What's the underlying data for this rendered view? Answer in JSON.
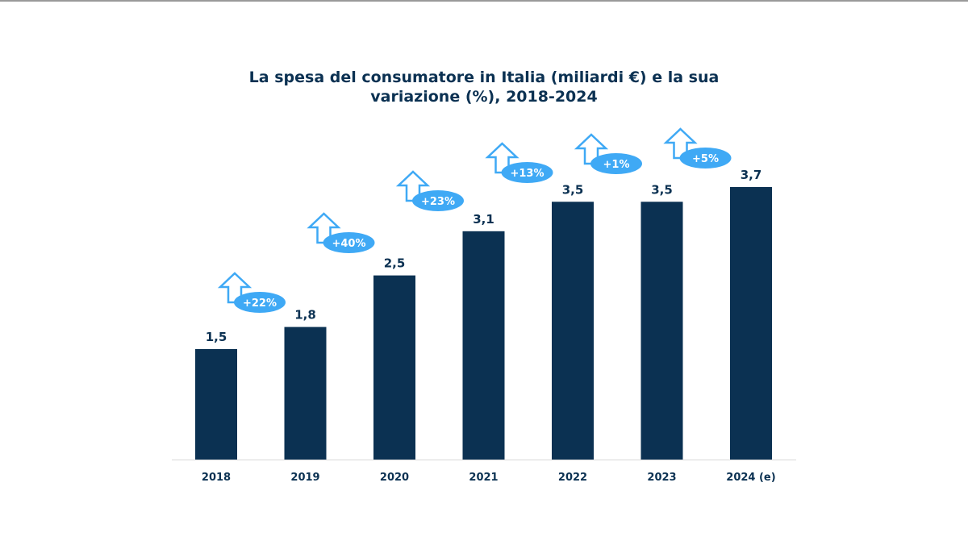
{
  "chart_data": {
    "type": "bar",
    "title_line1": "La spesa del consumatore in Italia (miliardi €) e la sua",
    "title_line2": "variazione (%), 2018-2024",
    "categories": [
      "2018",
      "2019",
      "2020",
      "2021",
      "2022",
      "2023",
      "2024 (e)"
    ],
    "values": [
      1.5,
      1.8,
      2.5,
      3.1,
      3.5,
      3.5,
      3.7
    ],
    "value_labels": [
      "1,5",
      "1,8",
      "2,5",
      "3,1",
      "3,5",
      "3,5",
      "3,7"
    ],
    "changes": [
      "+22%",
      "+40%",
      "+23%",
      "+13%",
      "+1%",
      "+5%"
    ],
    "xlabel": "",
    "ylabel": "",
    "grid": false,
    "legend": "none",
    "colors": {
      "bar": "#0b3152",
      "accent": "#3fa9f5",
      "text": "#0b3152",
      "axis": "#d9d9d9"
    }
  }
}
